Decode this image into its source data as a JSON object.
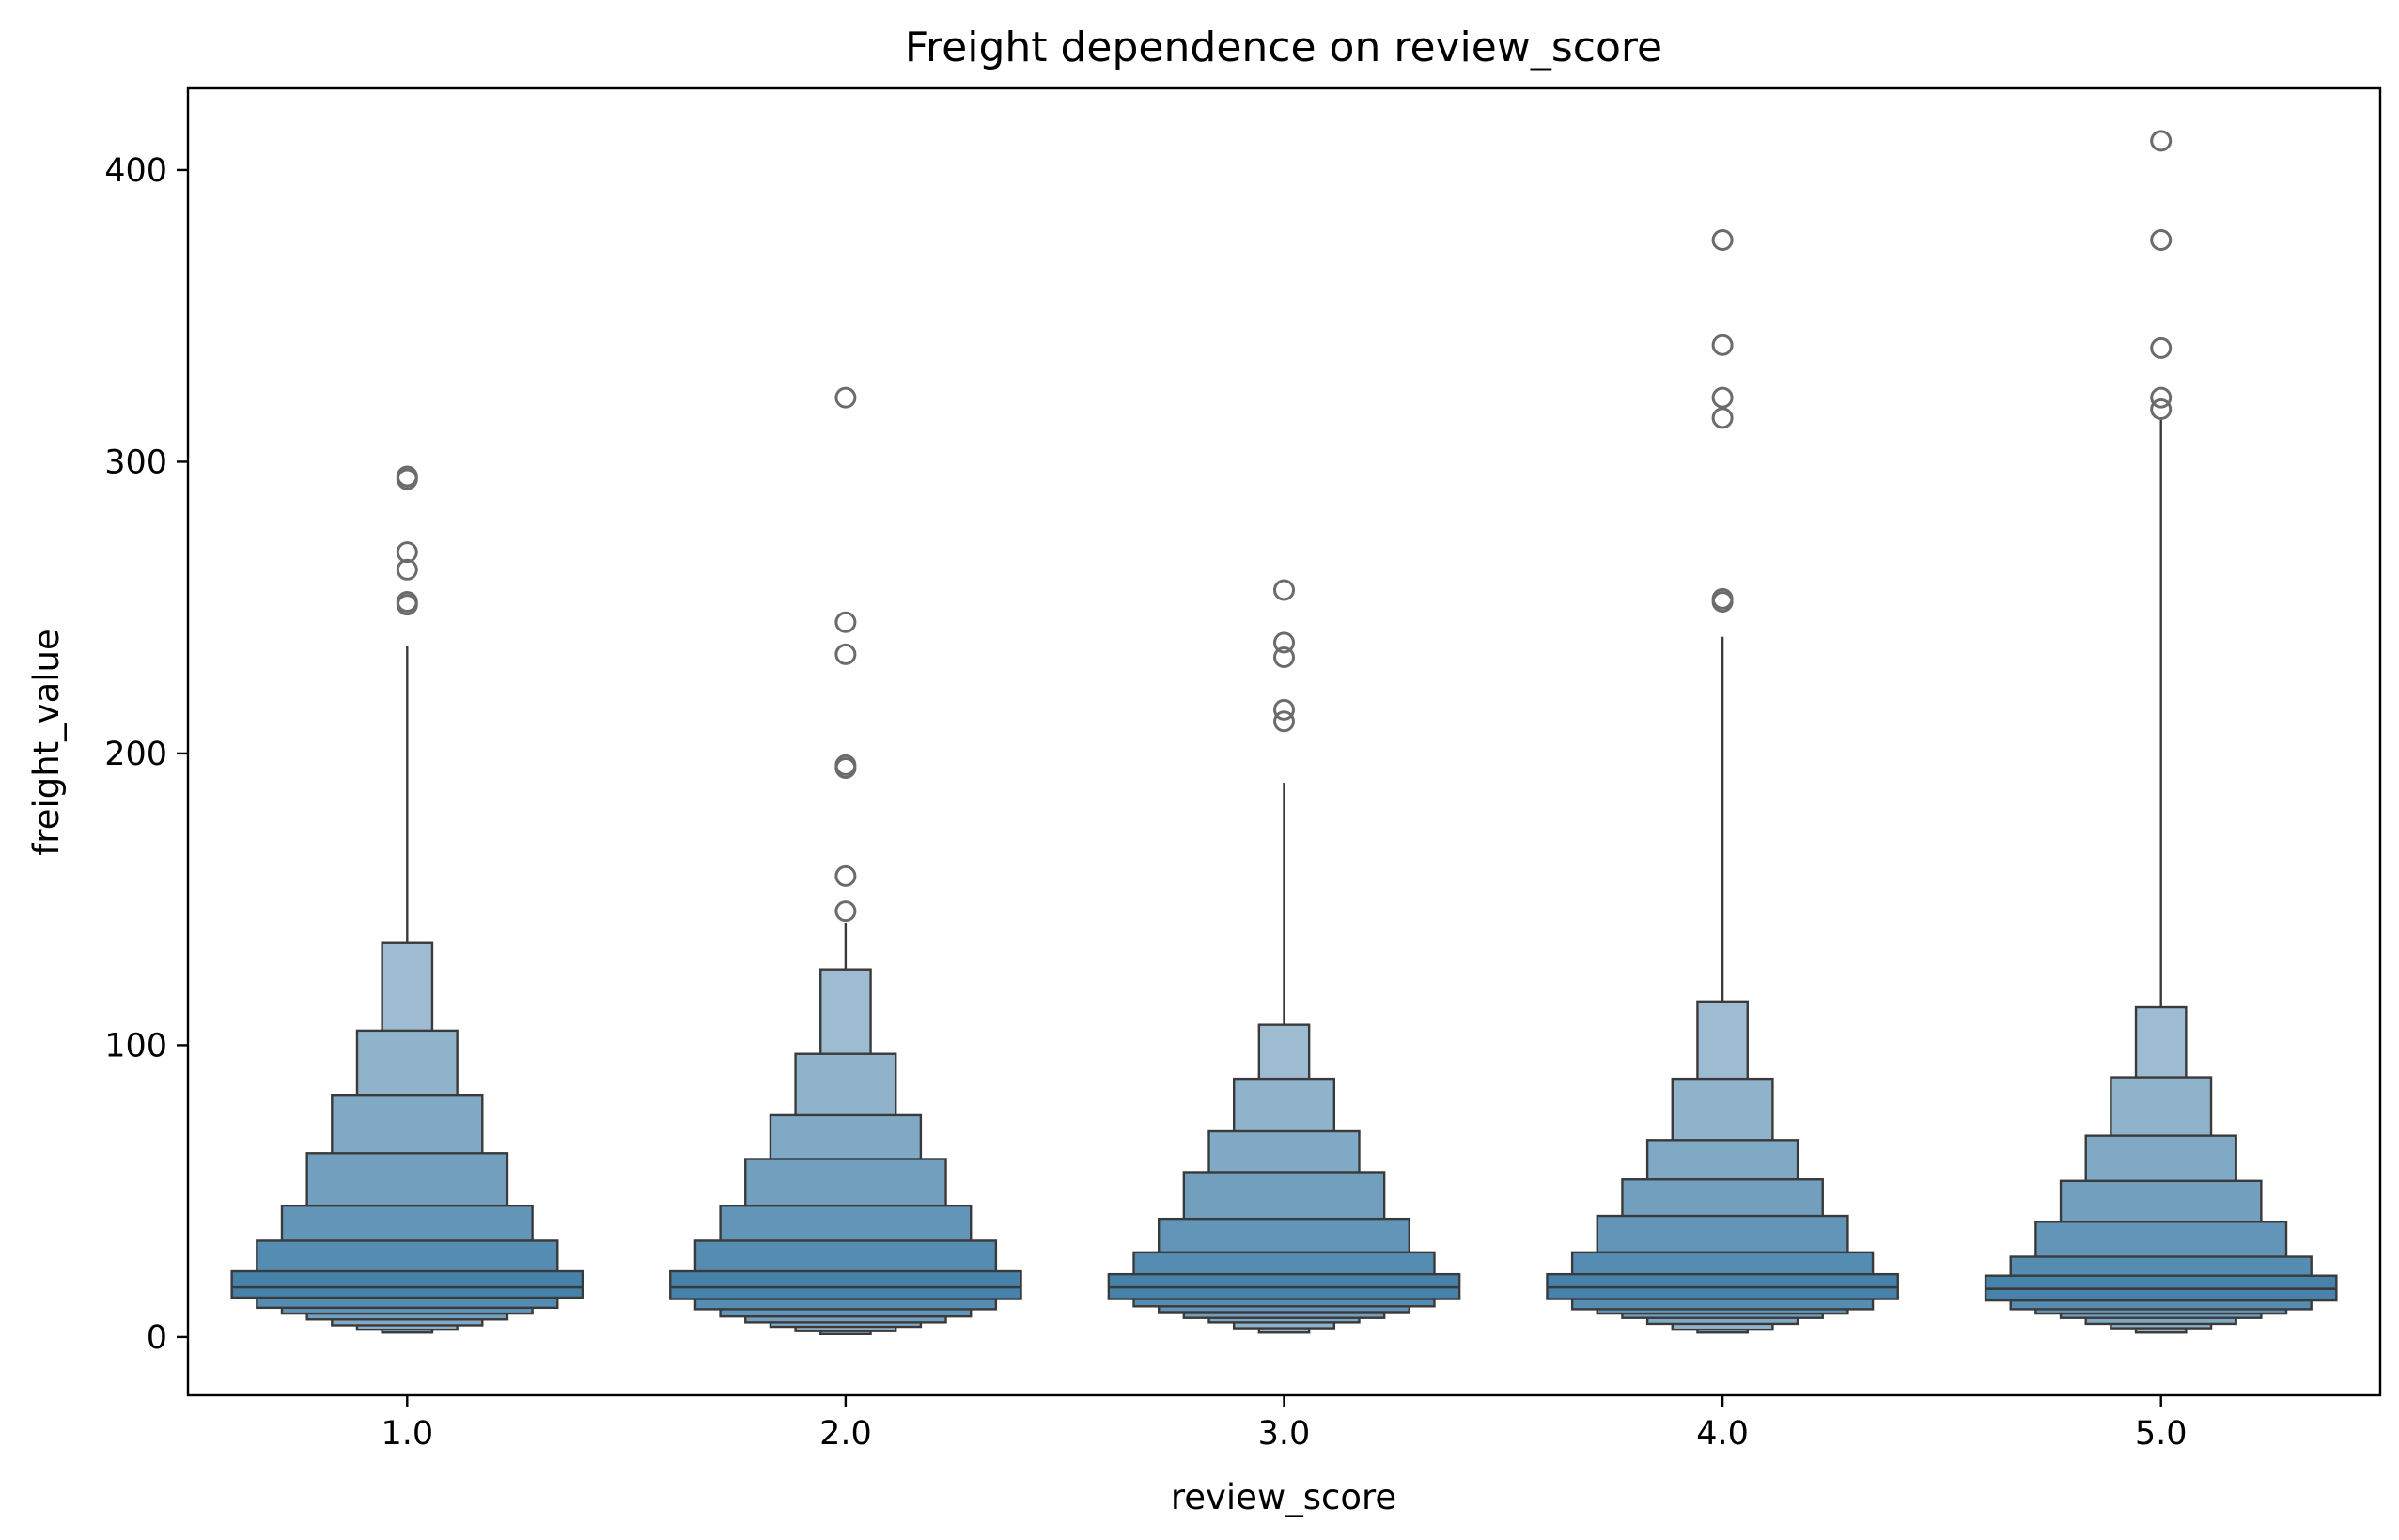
{
  "chart_data": {
    "type": "boxen",
    "title": "Freight dependence on review_score",
    "xlabel": "review_score",
    "ylabel": "freight_value",
    "ylim": [
      -20,
      428
    ],
    "yticks": [
      0,
      100,
      200,
      300,
      400
    ],
    "grid": false,
    "legend": "none",
    "colors": {
      "base": "#3274a1",
      "edge": "#3a3a3a",
      "outlier_edge": "#6b6b6b"
    },
    "categories": [
      "1.0",
      "2.0",
      "3.0",
      "4.0",
      "5.0"
    ],
    "groups": [
      {
        "category": "1.0",
        "median": 17,
        "levels": [
          {
            "low": 13.5,
            "high": 22.5
          },
          {
            "low": 10,
            "high": 33
          },
          {
            "low": 8,
            "high": 45
          },
          {
            "low": 6,
            "high": 63
          },
          {
            "low": 4,
            "high": 83
          },
          {
            "low": 2.5,
            "high": 105
          },
          {
            "low": 1.5,
            "high": 135
          }
        ],
        "whisker_high": 237,
        "outliers": [
          251,
          252,
          263,
          269,
          294,
          295
        ]
      },
      {
        "category": "2.0",
        "median": 17,
        "levels": [
          {
            "low": 13,
            "high": 22.5
          },
          {
            "low": 9.5,
            "high": 33
          },
          {
            "low": 7,
            "high": 45
          },
          {
            "low": 5,
            "high": 61
          },
          {
            "low": 3.5,
            "high": 76
          },
          {
            "low": 2,
            "high": 97
          },
          {
            "low": 1,
            "high": 126
          }
        ],
        "whisker_high": 142,
        "outliers": [
          146,
          158,
          195,
          196,
          234,
          245,
          322
        ]
      },
      {
        "category": "3.0",
        "median": 17,
        "levels": [
          {
            "low": 13,
            "high": 21.5
          },
          {
            "low": 10.5,
            "high": 29
          },
          {
            "low": 8.5,
            "high": 40.5
          },
          {
            "low": 6.5,
            "high": 56.5
          },
          {
            "low": 5,
            "high": 70.5
          },
          {
            "low": 3,
            "high": 88.5
          },
          {
            "low": 1.5,
            "high": 107
          }
        ],
        "whisker_high": 190,
        "outliers": [
          211,
          215,
          233,
          238,
          256
        ]
      },
      {
        "category": "4.0",
        "median": 17,
        "levels": [
          {
            "low": 13,
            "high": 21.5
          },
          {
            "low": 9.5,
            "high": 29
          },
          {
            "low": 8,
            "high": 41.5
          },
          {
            "low": 6.5,
            "high": 54
          },
          {
            "low": 4.5,
            "high": 67.5
          },
          {
            "low": 2.5,
            "high": 88.5
          },
          {
            "low": 1.5,
            "high": 115
          }
        ],
        "whisker_high": 240,
        "outliers": [
          252,
          253,
          315,
          322,
          340,
          376
        ]
      },
      {
        "category": "5.0",
        "median": 16.5,
        "levels": [
          {
            "low": 12.5,
            "high": 21
          },
          {
            "low": 9.5,
            "high": 27.5
          },
          {
            "low": 8,
            "high": 39.5
          },
          {
            "low": 6.5,
            "high": 53.5
          },
          {
            "low": 4.5,
            "high": 69
          },
          {
            "low": 3,
            "high": 89
          },
          {
            "low": 1.5,
            "high": 113
          }
        ],
        "whisker_high": 315,
        "outliers": [
          318,
          322,
          339,
          376,
          410
        ]
      }
    ]
  }
}
